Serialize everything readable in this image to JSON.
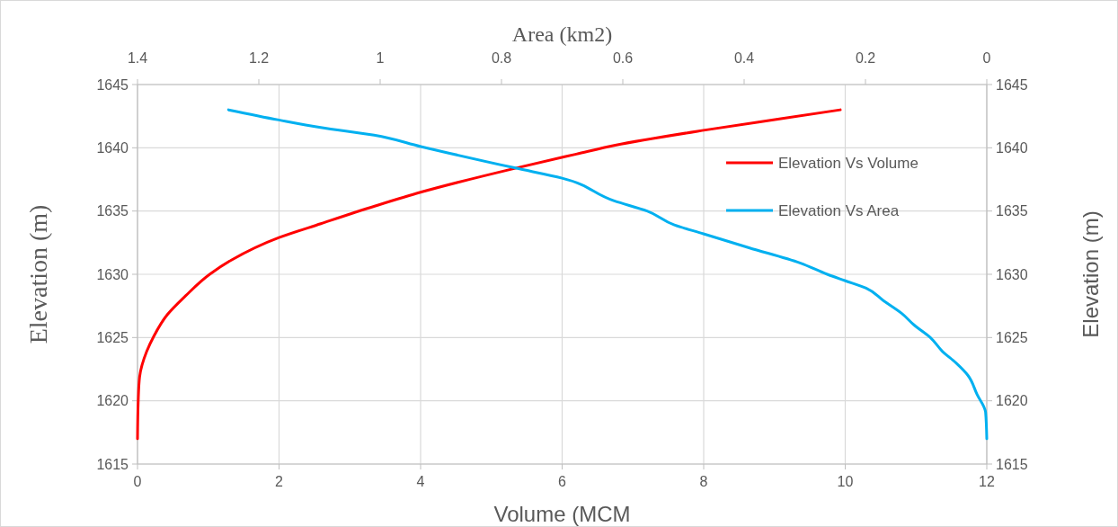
{
  "chart_data": {
    "type": "line",
    "xlabel": "Volume (MCM",
    "ylabel": "Elevation (m)",
    "y2label": "Elevation (m)",
    "x2label": "Area (km2)",
    "xlim": [
      0,
      12
    ],
    "xticks": [
      0,
      2,
      4,
      6,
      8,
      10,
      12
    ],
    "x2lim": [
      1.4,
      0
    ],
    "x2ticks": [
      1.4,
      1.2,
      1,
      0.8,
      0.6,
      0.4,
      0.2,
      0
    ],
    "ylim": [
      1615,
      1645
    ],
    "yticks": [
      1615,
      1620,
      1625,
      1630,
      1635,
      1640,
      1645
    ],
    "y2lim": [
      1615,
      1645
    ],
    "y2ticks": [
      1615,
      1620,
      1625,
      1630,
      1635,
      1640,
      1645
    ],
    "grid": true,
    "legend": "top right",
    "marker": "none",
    "line_style": "solid",
    "series": [
      {
        "name": "Elevation Vs Volume",
        "color": "#ff0000",
        "x": [
          0,
          0.01,
          0.03,
          0.13,
          0.23,
          0.42,
          0.68,
          1.02,
          1.32,
          2.0,
          2.59,
          3.36,
          4.01,
          5.35,
          6.2,
          6.75,
          8.02,
          9.09,
          9.93
        ],
        "values": [
          1617,
          1620,
          1621.9,
          1623.9,
          1625.1,
          1626.8,
          1628.3,
          1630,
          1631.1,
          1632.9,
          1634,
          1635.4,
          1636.5,
          1638.4,
          1639.5,
          1640.2,
          1641.4,
          1642.3,
          1643
        ]
      },
      {
        "name": "Elevation Vs Area",
        "color": "#00b0f0",
        "axis": "x2",
        "x": [
          1.25,
          1.167,
          1.098,
          1.01,
          0.933,
          0.777,
          0.7,
          0.614,
          0.56,
          0.515,
          0.467,
          0.392,
          0.308,
          0.263,
          0.234,
          0.199,
          0.17,
          0.14,
          0.12,
          0.093,
          0.073,
          0.051,
          0.031,
          0.016,
          0.002,
          0
        ],
        "values": [
          1643,
          1642.2,
          1641.6,
          1641,
          1640.1,
          1638.4,
          1637.6,
          1635.8,
          1635,
          1633.9,
          1633.2,
          1632.1,
          1630.9,
          1630,
          1629.5,
          1628.9,
          1627.9,
          1626.9,
          1626,
          1625,
          1623.9,
          1623,
          1622,
          1620.5,
          1619.1,
          1617
        ]
      }
    ]
  }
}
